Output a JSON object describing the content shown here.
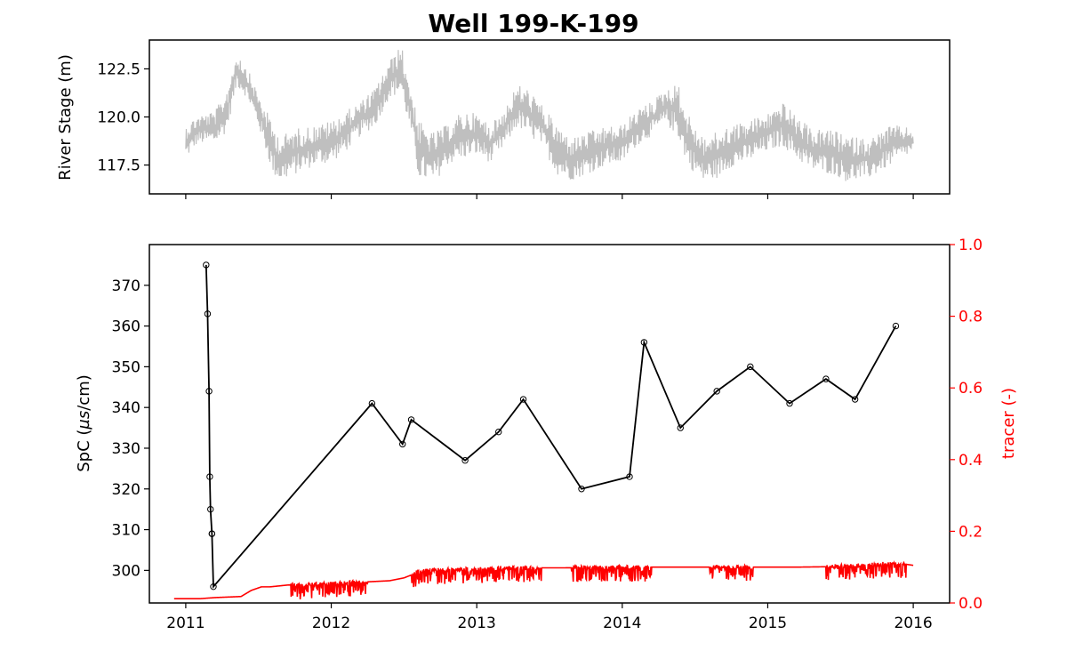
{
  "chart_data": [
    {
      "type": "line",
      "title": "Well 199-K-199",
      "ylabel": "River Stage (m)",
      "xlim": [
        2010.75,
        2016.25
      ],
      "ylim": [
        116.0,
        124.0
      ],
      "xticks": [
        2011,
        2012,
        2013,
        2014,
        2015,
        2016
      ],
      "yticks": [
        117.5,
        120.0,
        122.5
      ],
      "ytick_labels": [
        "117.5",
        "120.0",
        "122.5"
      ],
      "grid": false,
      "series": [
        {
          "color": "#bfbfbf",
          "envelope_x": [
            2011.0,
            2011.08,
            2011.2,
            2011.28,
            2011.35,
            2011.42,
            2011.5,
            2011.6,
            2011.65,
            2011.75,
            2011.9,
            2012.0,
            2012.1,
            2012.2,
            2012.3,
            2012.4,
            2012.48,
            2012.55,
            2012.6,
            2012.7,
            2012.8,
            2012.9,
            2013.0,
            2013.1,
            2013.2,
            2013.28,
            2013.35,
            2013.45,
            2013.55,
            2013.65,
            2013.75,
            2013.9,
            2014.0,
            2014.1,
            2014.2,
            2014.3,
            2014.38,
            2014.45,
            2014.55,
            2014.65,
            2014.75,
            2014.85,
            2015.0,
            2015.1,
            2015.2,
            2015.3,
            2015.45,
            2015.55,
            2015.7,
            2015.85,
            2016.0
          ],
          "envelope_low": [
            117.8,
            118.6,
            118.6,
            119.2,
            121.6,
            121.0,
            119.5,
            117.0,
            116.6,
            117.0,
            117.5,
            117.6,
            118.2,
            119.0,
            119.5,
            121.0,
            121.2,
            119.0,
            116.8,
            116.5,
            117.5,
            117.8,
            118.0,
            117.6,
            118.5,
            119.5,
            119.0,
            118.5,
            117.0,
            116.7,
            117.0,
            117.5,
            117.6,
            118.5,
            119.0,
            119.6,
            119.0,
            117.5,
            116.6,
            116.8,
            117.4,
            117.6,
            118.2,
            118.5,
            117.8,
            117.2,
            117.0,
            116.6,
            116.8,
            117.5,
            118.2
          ],
          "envelope_high": [
            119.6,
            120.1,
            120.3,
            121.4,
            123.4,
            122.6,
            121.2,
            119.6,
            119.0,
            119.4,
            119.6,
            119.8,
            120.3,
            120.8,
            121.5,
            122.9,
            123.8,
            121.5,
            119.8,
            119.2,
            119.6,
            120.3,
            120.2,
            119.6,
            120.6,
            121.7,
            121.5,
            120.6,
            119.6,
            118.9,
            119.2,
            119.5,
            119.6,
            120.4,
            120.8,
            121.5,
            121.8,
            120.2,
            119.0,
            119.2,
            119.6,
            119.8,
            120.2,
            120.8,
            120.0,
            119.4,
            119.3,
            119.0,
            118.9,
            119.6,
            119.4
          ]
        }
      ]
    },
    {
      "type": "line",
      "ylabel": "SpC (µs/cm)",
      "ylabel_parts": [
        "SpC (",
        "µs",
        "/cm)"
      ],
      "y2label": "tracer (-)",
      "xlim": [
        2010.75,
        2016.25
      ],
      "ylim": [
        292.0,
        380.0
      ],
      "y2lim": [
        0.0,
        1.0
      ],
      "xticks": [
        2011,
        2012,
        2013,
        2014,
        2015,
        2016
      ],
      "xtick_labels": [
        "2011",
        "2012",
        "2013",
        "2014",
        "2015",
        "2016"
      ],
      "yticks": [
        300,
        310,
        320,
        330,
        340,
        350,
        360,
        370
      ],
      "y2ticks": [
        0.0,
        0.2,
        0.4,
        0.6,
        0.8,
        1.0
      ],
      "y2tick_labels": [
        "0.0",
        "0.2",
        "0.4",
        "0.6",
        "0.8",
        "1.0"
      ],
      "grid": false,
      "series": [
        {
          "color": "#000000",
          "marker": "open-circle",
          "x": [
            2011.14,
            2011.15,
            2011.16,
            2011.165,
            2011.17,
            2011.18,
            2011.18,
            2011.19,
            2012.28,
            2012.49,
            2012.55,
            2012.92,
            2013.15,
            2013.32,
            2013.72,
            2014.05,
            2014.15,
            2014.4,
            2014.65,
            2014.88,
            2015.15,
            2015.4,
            2015.6,
            2015.88
          ],
          "y": [
            375,
            363,
            344,
            323,
            315,
            309,
            309,
            296,
            341,
            331,
            337,
            327,
            334,
            342,
            320,
            323,
            356,
            335,
            344,
            350,
            341,
            347,
            342,
            360
          ]
        },
        {
          "color": "#ff0000",
          "axis": "right",
          "x": [
            2010.92,
            2011.0,
            2011.1,
            2011.2,
            2011.38,
            2011.45,
            2011.52,
            2011.58,
            2011.7,
            2011.8,
            2012.0,
            2012.2,
            2012.4,
            2012.5,
            2012.55,
            2012.6,
            2012.7,
            2012.8,
            2013.0,
            2013.2,
            2013.4,
            2013.6,
            2013.8,
            2014.0,
            2014.2,
            2014.4,
            2014.6,
            2014.8,
            2015.0,
            2015.2,
            2015.4,
            2015.6,
            2015.8,
            2015.95,
            2016.0
          ],
          "y": [
            0.012,
            0.012,
            0.012,
            0.015,
            0.018,
            0.035,
            0.045,
            0.045,
            0.05,
            0.05,
            0.055,
            0.058,
            0.062,
            0.07,
            0.078,
            0.09,
            0.092,
            0.093,
            0.095,
            0.097,
            0.098,
            0.098,
            0.099,
            0.1,
            0.1,
            0.1,
            0.1,
            0.1,
            0.1,
            0.1,
            0.101,
            0.105,
            0.11,
            0.108,
            0.105
          ],
          "noise_ranges": [
            [
              2011.72,
              2012.25
            ],
            [
              2012.55,
              2013.45
            ],
            [
              2013.65,
              2014.2
            ],
            [
              2014.6,
              2014.9
            ],
            [
              2015.4,
              2015.95
            ]
          ]
        }
      ]
    }
  ]
}
